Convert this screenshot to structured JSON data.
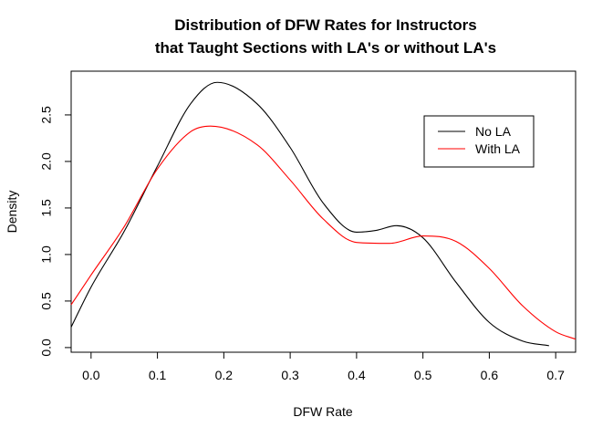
{
  "chart_data": {
    "type": "line",
    "title_lines": [
      "Distribution of DFW Rates for Instructors",
      "that Taught Sections with LA's or without LA's"
    ],
    "xlabel": "DFW Rate",
    "ylabel": "Density",
    "xlim": [
      -0.03,
      0.73
    ],
    "ylim": [
      -0.05,
      2.97
    ],
    "x_ticks": [
      "0.0",
      "0.1",
      "0.2",
      "0.3",
      "0.4",
      "0.5",
      "0.6",
      "0.7"
    ],
    "y_ticks": [
      "0.0",
      "0.5",
      "1.0",
      "1.5",
      "2.0",
      "2.5"
    ],
    "legend_position": "top-right",
    "legend_entries": [
      "No LA",
      "With LA"
    ],
    "series": [
      {
        "name": "No LA",
        "color": "#000000",
        "x": [
          -0.03,
          0.0,
          0.05,
          0.1,
          0.15,
          0.19,
          0.25,
          0.3,
          0.35,
          0.4,
          0.43,
          0.46,
          0.5,
          0.55,
          0.6,
          0.65,
          0.69
        ],
        "y": [
          0.22,
          0.65,
          1.25,
          1.95,
          2.62,
          2.85,
          2.62,
          2.15,
          1.55,
          1.24,
          1.26,
          1.31,
          1.18,
          0.7,
          0.27,
          0.07,
          0.02
        ]
      },
      {
        "name": "With LA",
        "color": "#ff0000",
        "x": [
          -0.03,
          0.0,
          0.05,
          0.1,
          0.15,
          0.18,
          0.25,
          0.3,
          0.35,
          0.4,
          0.45,
          0.5,
          0.55,
          0.6,
          0.65,
          0.7,
          0.73
        ],
        "y": [
          0.46,
          0.78,
          1.3,
          1.92,
          2.32,
          2.38,
          2.18,
          1.8,
          1.38,
          1.13,
          1.12,
          1.2,
          1.14,
          0.85,
          0.45,
          0.17,
          0.09
        ]
      }
    ]
  }
}
